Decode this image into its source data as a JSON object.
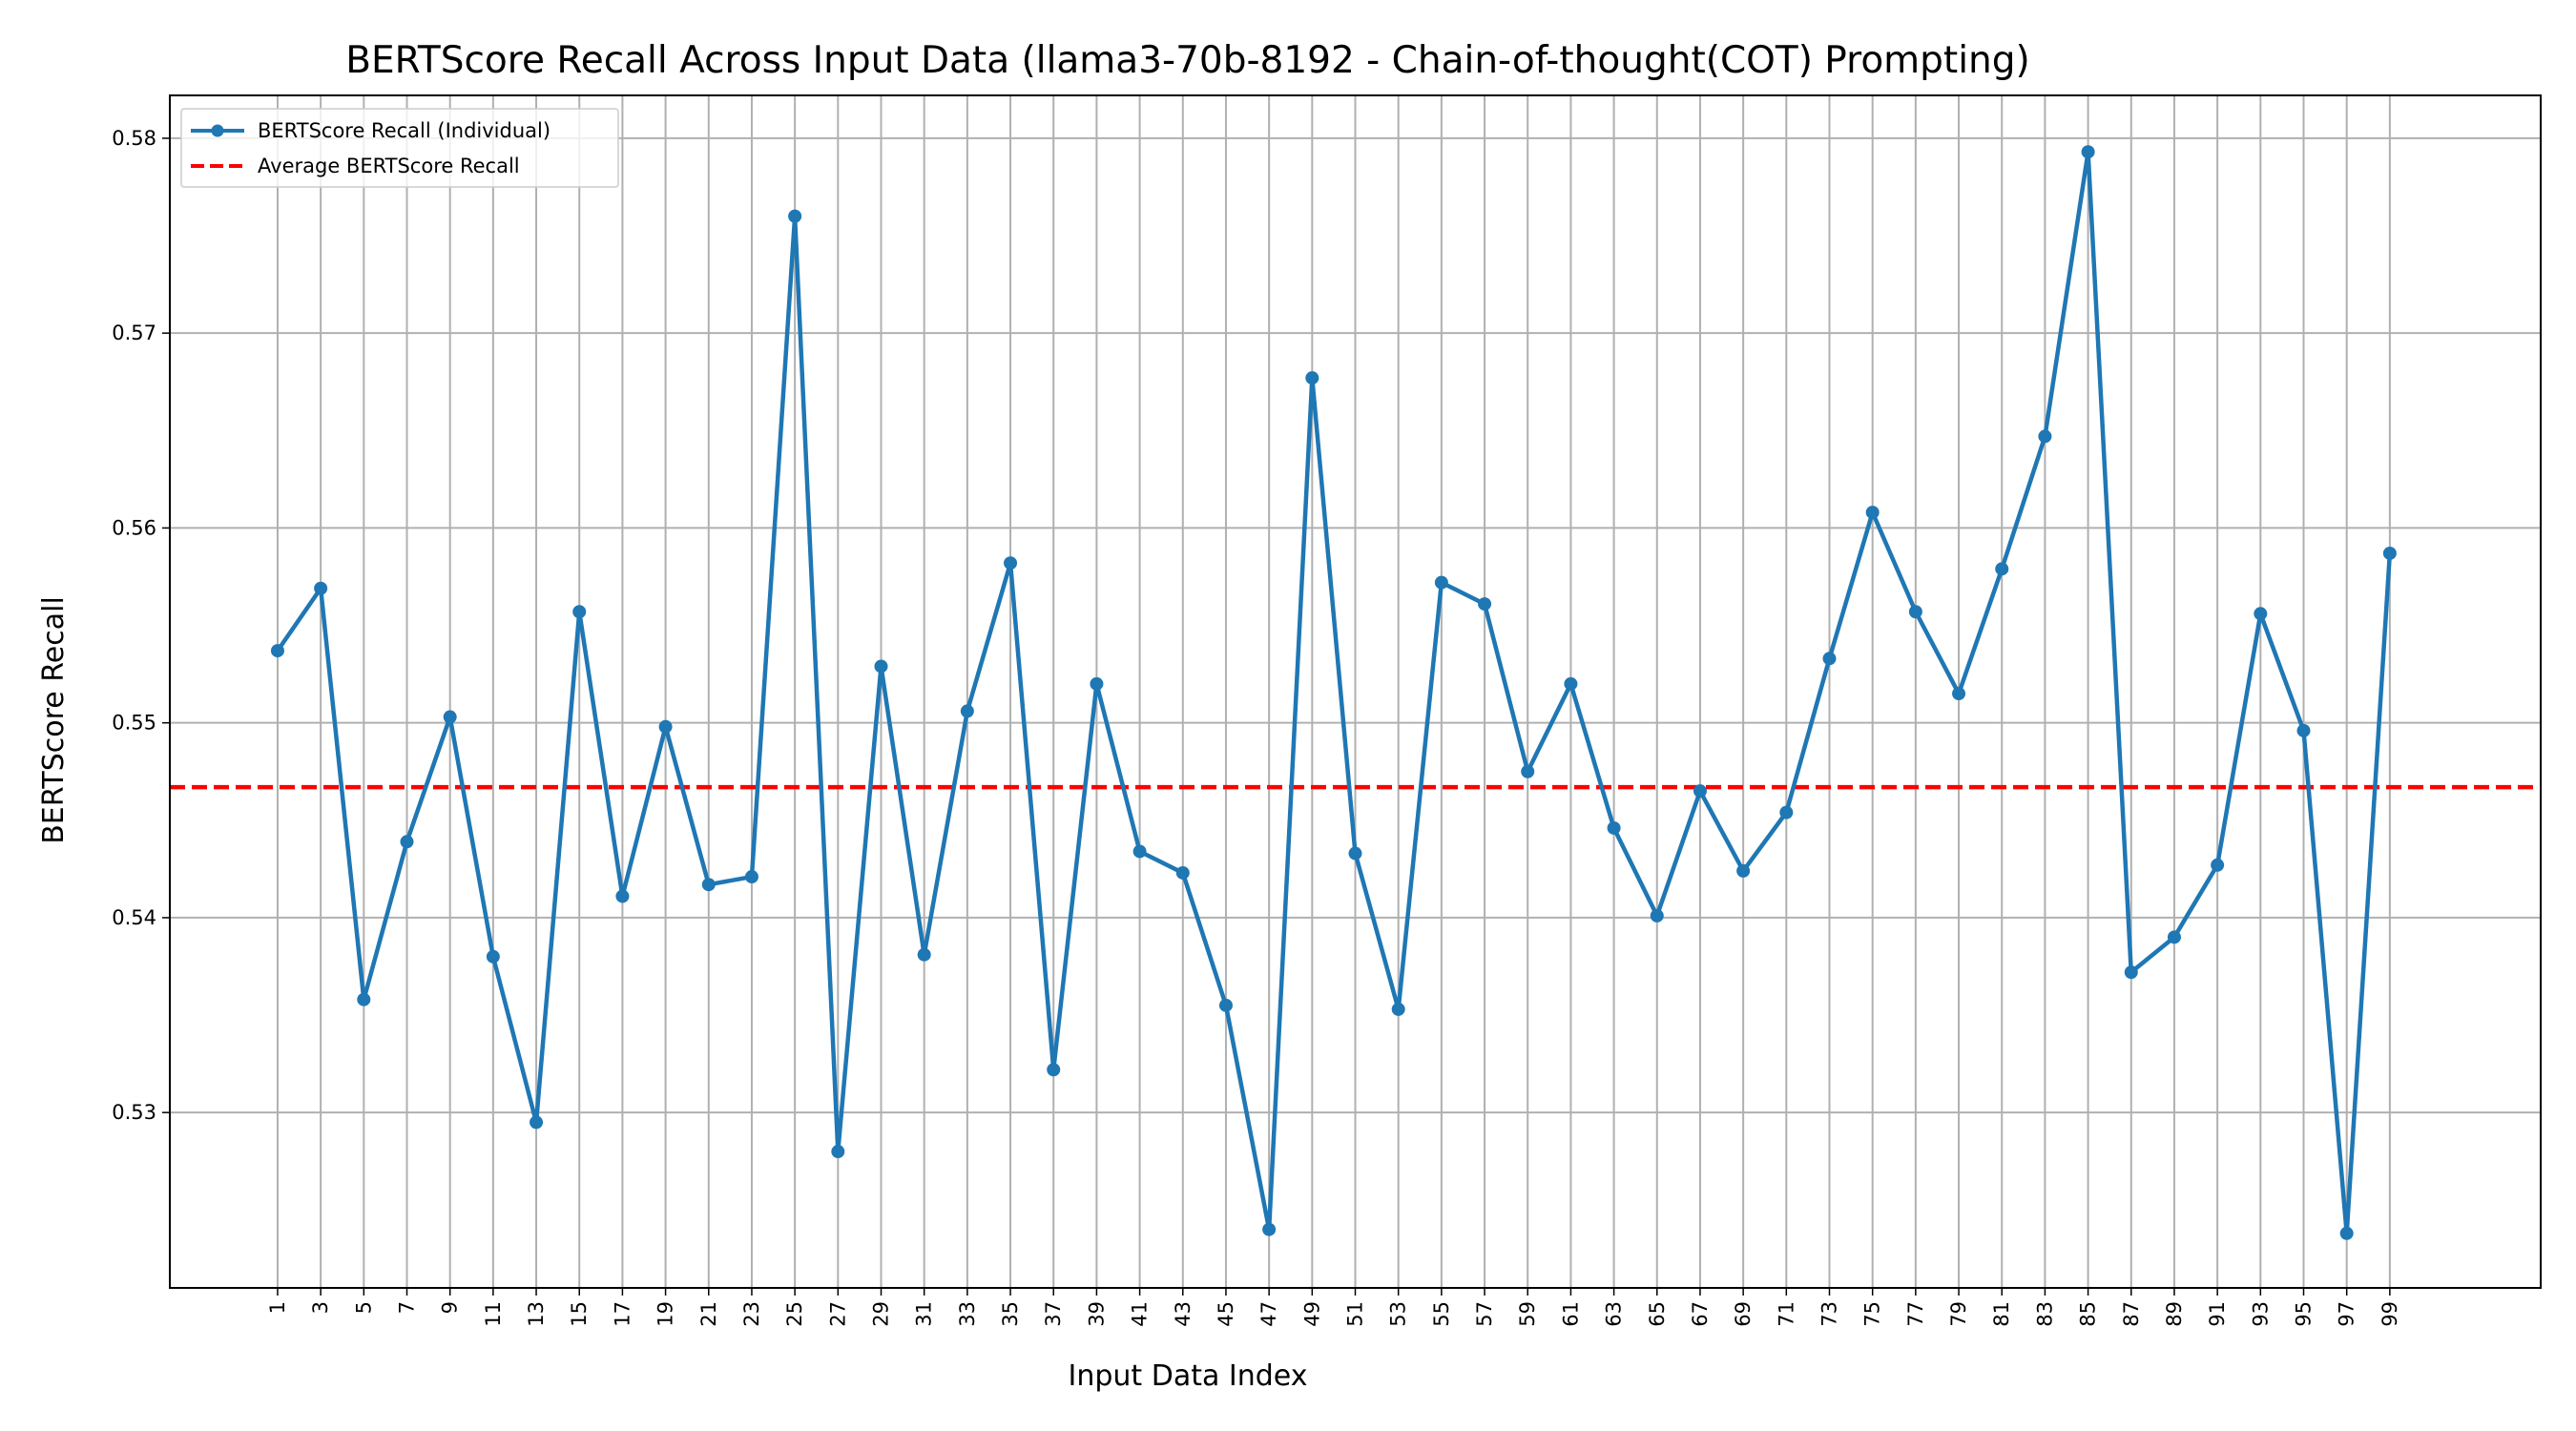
{
  "chart_data": {
    "type": "line",
    "title": "BERTScore Recall Across Input Data (llama3-70b-8192 - Chain-of-thought(COT) Prompting)",
    "xlabel": "Input Data Index",
    "ylabel": "BERTScore Recall",
    "x": [
      1,
      3,
      5,
      7,
      9,
      11,
      13,
      15,
      17,
      19,
      21,
      23,
      25,
      27,
      29,
      31,
      33,
      35,
      37,
      39,
      41,
      43,
      45,
      47,
      49,
      51,
      53,
      55,
      57,
      59,
      61,
      63,
      65,
      67,
      69,
      71,
      73,
      75,
      77,
      79,
      81,
      83,
      85,
      87,
      89,
      91,
      93,
      95,
      97,
      99
    ],
    "x_tick_labels": [
      "1",
      "3",
      "5",
      "7",
      "9",
      "11",
      "13",
      "15",
      "17",
      "19",
      "21",
      "23",
      "25",
      "27",
      "29",
      "31",
      "33",
      "35",
      "37",
      "39",
      "41",
      "43",
      "45",
      "47",
      "49",
      "51",
      "53",
      "55",
      "57",
      "59",
      "61",
      "63",
      "65",
      "67",
      "69",
      "71",
      "73",
      "75",
      "77",
      "79",
      "81",
      "83",
      "85",
      "87",
      "89",
      "91",
      "93",
      "95",
      "97",
      "99"
    ],
    "xlim": [
      -4,
      106
    ],
    "ylim": [
      0.521,
      0.5822
    ],
    "y_ticks": [
      0.53,
      0.54,
      0.55,
      0.56,
      0.57,
      0.58
    ],
    "y_tick_labels": [
      "0.53",
      "0.54",
      "0.55",
      "0.56",
      "0.57",
      "0.58"
    ],
    "grid": true,
    "legend_position": "top-left",
    "series": [
      {
        "name": "BERTScore Recall (Individual)",
        "style": "solid-with-markers",
        "color": "#1f77b4",
        "values": [
          0.5537,
          0.5569,
          0.5358,
          0.5439,
          0.5503,
          0.538,
          0.5295,
          0.5557,
          0.5411,
          0.5498,
          0.5417,
          0.5421,
          0.576,
          0.528,
          0.5529,
          0.5381,
          0.5506,
          0.5582,
          0.5322,
          0.552,
          0.5434,
          0.5423,
          0.5355,
          0.524,
          0.5677,
          0.5433,
          0.5353,
          0.5572,
          0.5561,
          0.5475,
          0.552,
          0.5446,
          0.5401,
          0.5465,
          0.5424,
          0.5454,
          0.5533,
          0.5608,
          0.5557,
          0.5515,
          0.5579,
          0.5647,
          0.5793,
          0.5372,
          0.539,
          0.5427,
          0.5556,
          0.5496,
          0.5238,
          0.5587
        ]
      },
      {
        "name": "Average BERTScore Recall",
        "style": "dashed",
        "color": "#ff0000",
        "value": 0.5467
      }
    ]
  }
}
